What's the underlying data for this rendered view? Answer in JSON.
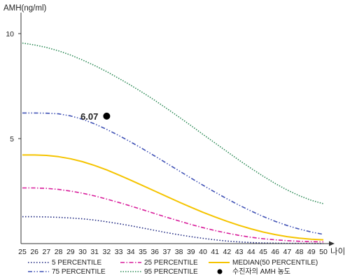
{
  "chart_data": {
    "type": "line",
    "ylabel": "AMH(ng/ml)",
    "xlabel": "나이",
    "xlim": [
      25,
      50
    ],
    "ylim": [
      0,
      11
    ],
    "x_ticks": [
      25,
      26,
      27,
      28,
      29,
      30,
      31,
      32,
      33,
      34,
      35,
      36,
      37,
      38,
      39,
      40,
      41,
      42,
      43,
      44,
      45,
      46,
      47,
      48,
      49,
      50
    ],
    "y_ticks": [
      {
        "value": 10,
        "label": "10"
      },
      {
        "value": 5,
        "label": "5"
      }
    ],
    "series": [
      {
        "name": "5 PERCENTILE",
        "color": "#1a237e",
        "dash": "1.5 2.5",
        "x": [
          25,
          26,
          27,
          28,
          29,
          30,
          31,
          32,
          33,
          34,
          35,
          36,
          37,
          38,
          39,
          40,
          41,
          42,
          43,
          44,
          45,
          46,
          47,
          48,
          49,
          50
        ],
        "y": [
          1.28,
          1.28,
          1.27,
          1.25,
          1.22,
          1.18,
          1.12,
          1.04,
          0.95,
          0.85,
          0.74,
          0.63,
          0.52,
          0.42,
          0.33,
          0.25,
          0.18,
          0.12,
          0.08,
          0.05,
          0.03,
          0.02,
          0.01,
          0.01,
          0.01,
          0.0
        ]
      },
      {
        "name": "25 PERCENTILE",
        "color": "#d81b9a",
        "dash": "6 2.5 1.5 2.5",
        "x": [
          25,
          26,
          27,
          28,
          29,
          30,
          31,
          32,
          33,
          34,
          35,
          36,
          37,
          38,
          39,
          40,
          41,
          42,
          43,
          44,
          45,
          46,
          47,
          48,
          49,
          50
        ],
        "y": [
          2.65,
          2.65,
          2.63,
          2.58,
          2.5,
          2.4,
          2.27,
          2.12,
          1.96,
          1.79,
          1.61,
          1.43,
          1.25,
          1.08,
          0.91,
          0.76,
          0.62,
          0.5,
          0.39,
          0.3,
          0.23,
          0.18,
          0.14,
          0.11,
          0.09,
          0.08
        ]
      },
      {
        "name": "MEDIAN(50 PERCENTILE)",
        "color": "#f5c400",
        "dash": "",
        "x": [
          25,
          26,
          27,
          28,
          29,
          30,
          31,
          32,
          33,
          34,
          35,
          36,
          37,
          38,
          39,
          40,
          41,
          42,
          43,
          44,
          45,
          46,
          47,
          48,
          49,
          50
        ],
        "y": [
          4.22,
          4.22,
          4.2,
          4.14,
          4.04,
          3.9,
          3.72,
          3.51,
          3.27,
          3.02,
          2.76,
          2.5,
          2.24,
          1.98,
          1.73,
          1.49,
          1.27,
          1.06,
          0.87,
          0.7,
          0.55,
          0.43,
          0.33,
          0.26,
          0.21,
          0.18
        ]
      },
      {
        "name": "75 PERCENTILE",
        "color": "#3f51b5",
        "dash": "6 2.5 1.5 2.5 1.5 2.5",
        "x": [
          25,
          26,
          27,
          28,
          29,
          30,
          31,
          32,
          33,
          34,
          35,
          36,
          37,
          38,
          39,
          40,
          41,
          42,
          43,
          44,
          45,
          46,
          47,
          48,
          49,
          50
        ],
        "y": [
          6.22,
          6.22,
          6.21,
          6.18,
          6.08,
          5.92,
          5.7,
          5.44,
          5.15,
          4.84,
          4.51,
          4.17,
          3.82,
          3.47,
          3.12,
          2.78,
          2.45,
          2.13,
          1.83,
          1.55,
          1.29,
          1.06,
          0.86,
          0.69,
          0.55,
          0.44
        ]
      },
      {
        "name": "95 PERCENTILE",
        "color": "#2e8b57",
        "dash": "1.5 2",
        "x": [
          25,
          26,
          27,
          28,
          29,
          30,
          31,
          32,
          33,
          34,
          35,
          36,
          37,
          38,
          39,
          40,
          41,
          42,
          43,
          44,
          45,
          46,
          47,
          48,
          49,
          50
        ],
        "y": [
          9.55,
          9.46,
          9.34,
          9.18,
          8.98,
          8.74,
          8.48,
          8.19,
          7.87,
          7.54,
          7.19,
          6.82,
          6.43,
          6.03,
          5.62,
          5.2,
          4.79,
          4.38,
          3.97,
          3.58,
          3.21,
          2.86,
          2.55,
          2.28,
          2.06,
          1.9
        ]
      }
    ],
    "point": {
      "x": 32,
      "y": 6.07,
      "label": "6.07",
      "color": "#000000"
    },
    "legend": {
      "placement": "bottom",
      "items": [
        {
          "name": "5 PERCENTILE",
          "color": "#1a237e",
          "dash": "1.5 2.5",
          "kind": "line"
        },
        {
          "name": "25 PERCENTILE",
          "color": "#d81b9a",
          "dash": "6 2.5 1.5 2.5",
          "kind": "line"
        },
        {
          "name": "MEDIAN(50 PERCENTILE)",
          "color": "#f5c400",
          "dash": "",
          "kind": "line"
        },
        {
          "name": "75 PERCENTILE",
          "color": "#3f51b5",
          "dash": "6 2.5 1.5 2.5 1.5 2.5",
          "kind": "line"
        },
        {
          "name": "95 PERCENTILE",
          "color": "#2e8b57",
          "dash": "1.5 2",
          "kind": "line"
        },
        {
          "name": "수진자의 AMH 농도",
          "color": "#000000",
          "dash": "",
          "kind": "dot"
        }
      ]
    }
  }
}
